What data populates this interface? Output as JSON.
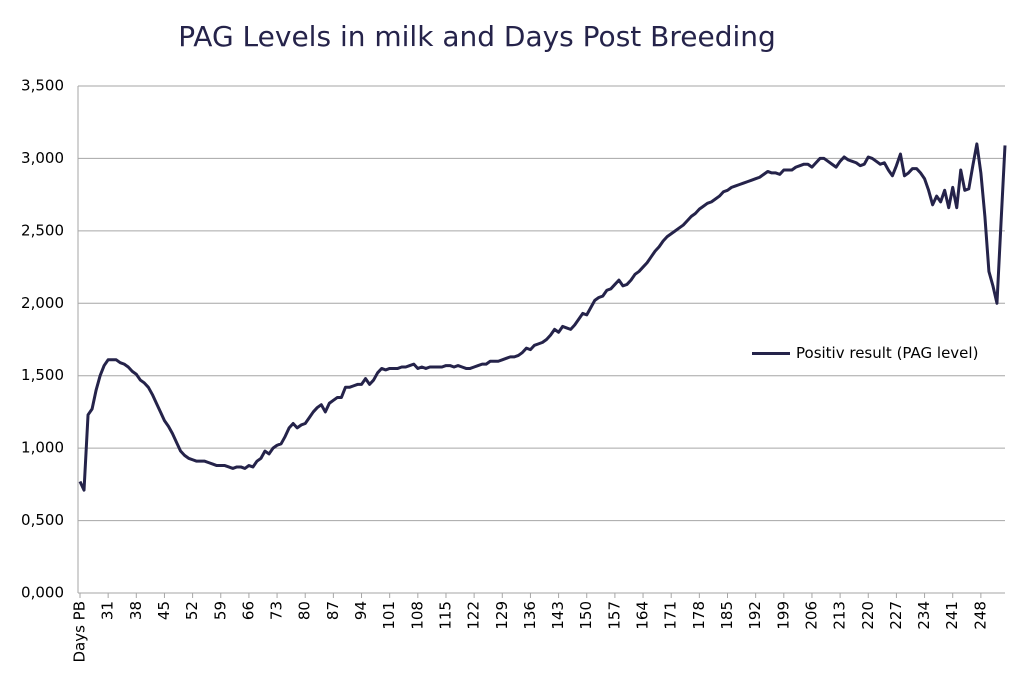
{
  "chart_data": {
    "type": "line",
    "title": "PAG Levels in milk and Days Post Breeding",
    "categories": [
      "Days PB",
      null,
      null,
      null,
      null,
      null,
      null,
      "31",
      null,
      null,
      null,
      null,
      null,
      null,
      "38",
      null,
      null,
      null,
      null,
      null,
      null,
      "45",
      null,
      null,
      null,
      null,
      null,
      null,
      "52",
      null,
      null,
      null,
      null,
      null,
      null,
      "59",
      null,
      null,
      null,
      null,
      null,
      null,
      "66",
      null,
      null,
      null,
      null,
      null,
      null,
      "73",
      null,
      null,
      null,
      null,
      null,
      null,
      "80",
      null,
      null,
      null,
      null,
      null,
      null,
      "87",
      null,
      null,
      null,
      null,
      null,
      null,
      "94",
      null,
      null,
      null,
      null,
      null,
      null,
      "101",
      null,
      null,
      null,
      null,
      null,
      null,
      "108",
      null,
      null,
      null,
      null,
      null,
      null,
      "115",
      null,
      null,
      null,
      null,
      null,
      null,
      "122",
      null,
      null,
      null,
      null,
      null,
      null,
      "129",
      null,
      null,
      null,
      null,
      null,
      null,
      "136",
      null,
      null,
      null,
      null,
      null,
      null,
      "143",
      null,
      null,
      null,
      null,
      null,
      null,
      "150",
      null,
      null,
      null,
      null,
      null,
      null,
      "157",
      null,
      null,
      null,
      null,
      null,
      null,
      "164",
      null,
      null,
      null,
      null,
      null,
      null,
      "171",
      null,
      null,
      null,
      null,
      null,
      null,
      "178",
      null,
      null,
      null,
      null,
      null,
      null,
      "185",
      null,
      null,
      null,
      null,
      null,
      null,
      "192",
      null,
      null,
      null,
      null,
      null,
      null,
      "199",
      null,
      null,
      null,
      null,
      null,
      null,
      "206",
      null,
      null,
      null,
      null,
      null,
      null,
      "213",
      null,
      null,
      null,
      null,
      null,
      null,
      "220",
      null,
      null,
      null,
      null,
      null,
      null,
      "227",
      null,
      null,
      null,
      null,
      null,
      null,
      "234",
      null,
      null,
      null,
      null,
      null,
      null,
      "241",
      null,
      null,
      null,
      null,
      null,
      null,
      "248",
      null,
      null,
      null,
      null,
      null,
      null
    ],
    "series": [
      {
        "name": "Positiv result (PAG level)",
        "color": "#25234a",
        "values": [
          0.77,
          0.71,
          1.23,
          1.27,
          1.4,
          1.5,
          1.57,
          1.61,
          1.61,
          1.61,
          1.59,
          1.58,
          1.56,
          1.53,
          1.51,
          1.47,
          1.45,
          1.42,
          1.37,
          1.31,
          1.25,
          1.19,
          1.15,
          1.1,
          1.04,
          0.98,
          0.95,
          0.93,
          0.92,
          0.91,
          0.91,
          0.91,
          0.9,
          0.89,
          0.88,
          0.88,
          0.88,
          0.87,
          0.86,
          0.87,
          0.87,
          0.86,
          0.88,
          0.87,
          0.91,
          0.93,
          0.98,
          0.96,
          1.0,
          1.02,
          1.03,
          1.08,
          1.14,
          1.17,
          1.14,
          1.16,
          1.17,
          1.21,
          1.25,
          1.28,
          1.3,
          1.25,
          1.31,
          1.33,
          1.35,
          1.35,
          1.42,
          1.42,
          1.43,
          1.44,
          1.44,
          1.48,
          1.44,
          1.47,
          1.52,
          1.55,
          1.54,
          1.55,
          1.55,
          1.55,
          1.56,
          1.56,
          1.57,
          1.58,
          1.55,
          1.56,
          1.55,
          1.56,
          1.56,
          1.56,
          1.56,
          1.57,
          1.57,
          1.56,
          1.57,
          1.56,
          1.55,
          1.55,
          1.56,
          1.57,
          1.58,
          1.58,
          1.6,
          1.6,
          1.6,
          1.61,
          1.62,
          1.63,
          1.63,
          1.64,
          1.66,
          1.69,
          1.68,
          1.71,
          1.72,
          1.73,
          1.75,
          1.78,
          1.82,
          1.8,
          1.84,
          1.83,
          1.82,
          1.85,
          1.89,
          1.93,
          1.92,
          1.97,
          2.02,
          2.04,
          2.05,
          2.09,
          2.1,
          2.13,
          2.16,
          2.12,
          2.13,
          2.16,
          2.2,
          2.22,
          2.25,
          2.28,
          2.32,
          2.36,
          2.39,
          2.43,
          2.46,
          2.48,
          2.5,
          2.52,
          2.54,
          2.57,
          2.6,
          2.62,
          2.65,
          2.67,
          2.69,
          2.7,
          2.72,
          2.74,
          2.77,
          2.78,
          2.8,
          2.81,
          2.82,
          2.83,
          2.84,
          2.85,
          2.86,
          2.87,
          2.89,
          2.91,
          2.9,
          2.9,
          2.89,
          2.92,
          2.92,
          2.92,
          2.94,
          2.95,
          2.96,
          2.96,
          2.94,
          2.97,
          3.0,
          3.0,
          2.98,
          2.96,
          2.94,
          2.98,
          3.01,
          2.99,
          2.98,
          2.97,
          2.95,
          2.96,
          3.01,
          3.0,
          2.98,
          2.96,
          2.97,
          2.92,
          2.88,
          2.95,
          3.03,
          2.88,
          2.9,
          2.93,
          2.93,
          2.9,
          2.86,
          2.78,
          2.68,
          2.74,
          2.7,
          2.78,
          2.66,
          2.8,
          2.66,
          2.92,
          2.78,
          2.79,
          2.95,
          3.1,
          2.9,
          2.6,
          2.22,
          2.12,
          2.0,
          2.55,
          3.09
        ]
      }
    ],
    "ylim": [
      0,
      3.5
    ],
    "yticks": [
      {
        "value": 0,
        "label": "0,000"
      },
      {
        "value": 0.5,
        "label": "0,500"
      },
      {
        "value": 1,
        "label": "1,000"
      },
      {
        "value": 1.5,
        "label": "1,500"
      },
      {
        "value": 2,
        "label": "2,000"
      },
      {
        "value": 2.5,
        "label": "2,500"
      },
      {
        "value": 3,
        "label": "3,000"
      },
      {
        "value": 3.5,
        "label": "3,500"
      }
    ],
    "grid": true,
    "legend": "right"
  }
}
